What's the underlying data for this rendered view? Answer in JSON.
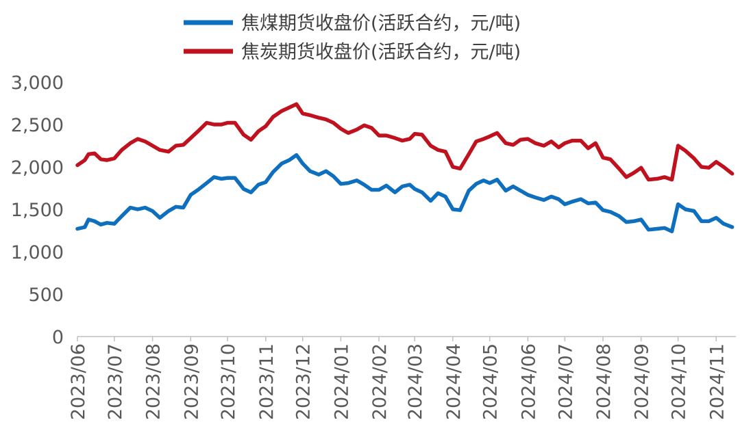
{
  "chart_data": {
    "type": "line",
    "title": "",
    "xlabel": "",
    "ylabel": "",
    "ylim": [
      0,
      3000
    ],
    "yticks": [
      "0",
      "500",
      "1,000",
      "1,500",
      "2,000",
      "2,500",
      "3,000"
    ],
    "ytick_values": [
      0,
      500,
      1000,
      1500,
      2000,
      2500,
      3000
    ],
    "xticks": [
      "2023/06",
      "2023/07",
      "2023/08",
      "2023/09",
      "2023/10",
      "2023/11",
      "2023/12",
      "2024/01",
      "2024/02",
      "2024/03",
      "2024/04",
      "2024/05",
      "2024/06",
      "2024/07",
      "2024/08",
      "2024/09",
      "2024/10",
      "2024/11"
    ],
    "grid": false,
    "legend": "top-center",
    "x": [
      "2023-06-01",
      "2023-06-07",
      "2023-06-10",
      "2023-06-15",
      "2023-06-20",
      "2023-06-25",
      "2023-07-01",
      "2023-07-07",
      "2023-07-14",
      "2023-07-20",
      "2023-07-26",
      "2023-08-01",
      "2023-08-07",
      "2023-08-14",
      "2023-08-20",
      "2023-08-26",
      "2023-09-01",
      "2023-09-07",
      "2023-09-14",
      "2023-09-20",
      "2023-09-26",
      "2023-10-01",
      "2023-10-07",
      "2023-10-14",
      "2023-10-20",
      "2023-10-26",
      "2023-11-01",
      "2023-11-07",
      "2023-11-14",
      "2023-11-20",
      "2023-11-26",
      "2023-12-01",
      "2023-12-07",
      "2023-12-14",
      "2023-12-20",
      "2023-12-26",
      "2024-01-01",
      "2024-01-07",
      "2024-01-14",
      "2024-01-20",
      "2024-01-26",
      "2024-02-01",
      "2024-02-07",
      "2024-02-14",
      "2024-02-20",
      "2024-02-26",
      "2024-03-01",
      "2024-03-07",
      "2024-03-14",
      "2024-03-20",
      "2024-03-26",
      "2024-04-01",
      "2024-04-07",
      "2024-04-14",
      "2024-04-20",
      "2024-04-26",
      "2024-05-01",
      "2024-05-07",
      "2024-05-14",
      "2024-05-20",
      "2024-05-26",
      "2024-06-01",
      "2024-06-07",
      "2024-06-14",
      "2024-06-20",
      "2024-06-26",
      "2024-07-01",
      "2024-07-07",
      "2024-07-14",
      "2024-07-20",
      "2024-07-26",
      "2024-08-01",
      "2024-08-07",
      "2024-08-14",
      "2024-08-20",
      "2024-08-26",
      "2024-09-01",
      "2024-09-07",
      "2024-09-14",
      "2024-09-20",
      "2024-09-26",
      "2024-10-01",
      "2024-10-07",
      "2024-10-14",
      "2024-10-20",
      "2024-10-26",
      "2024-11-01",
      "2024-11-07",
      "2024-11-14"
    ],
    "series": [
      {
        "name": "焦煤期货收盘价(活跃合约，元/吨)",
        "color": "#0F6FBF",
        "values": [
          1270,
          1290,
          1380,
          1360,
          1320,
          1340,
          1330,
          1420,
          1520,
          1500,
          1520,
          1480,
          1400,
          1480,
          1530,
          1520,
          1670,
          1730,
          1810,
          1880,
          1860,
          1870,
          1870,
          1740,
          1700,
          1790,
          1820,
          1940,
          2040,
          2080,
          2140,
          2040,
          1950,
          1910,
          1950,
          1890,
          1800,
          1810,
          1840,
          1790,
          1730,
          1730,
          1780,
          1700,
          1770,
          1790,
          1740,
          1700,
          1600,
          1690,
          1650,
          1500,
          1490,
          1720,
          1800,
          1840,
          1810,
          1850,
          1720,
          1770,
          1720,
          1670,
          1640,
          1610,
          1650,
          1620,
          1560,
          1590,
          1620,
          1570,
          1580,
          1490,
          1470,
          1420,
          1350,
          1360,
          1380,
          1260,
          1270,
          1280,
          1240,
          1560,
          1500,
          1480,
          1360,
          1360,
          1400,
          1330,
          1290
        ]
      },
      {
        "name": "焦炭期货收盘价(活跃合约，元/吨)",
        "color": "#C0111F",
        "values": [
          2020,
          2080,
          2150,
          2160,
          2090,
          2080,
          2100,
          2200,
          2280,
          2330,
          2300,
          2250,
          2200,
          2180,
          2250,
          2260,
          2340,
          2420,
          2520,
          2500,
          2500,
          2520,
          2520,
          2380,
          2320,
          2420,
          2480,
          2590,
          2660,
          2700,
          2740,
          2630,
          2610,
          2580,
          2560,
          2520,
          2450,
          2400,
          2440,
          2490,
          2460,
          2370,
          2370,
          2340,
          2310,
          2330,
          2390,
          2380,
          2250,
          2200,
          2180,
          2000,
          1980,
          2150,
          2300,
          2330,
          2360,
          2400,
          2280,
          2260,
          2320,
          2330,
          2280,
          2250,
          2300,
          2230,
          2280,
          2310,
          2310,
          2220,
          2280,
          2110,
          2090,
          1980,
          1880,
          1930,
          1990,
          1850,
          1860,
          1880,
          1850,
          2250,
          2190,
          2100,
          2000,
          1990,
          2060,
          2000,
          1920
        ]
      }
    ]
  }
}
